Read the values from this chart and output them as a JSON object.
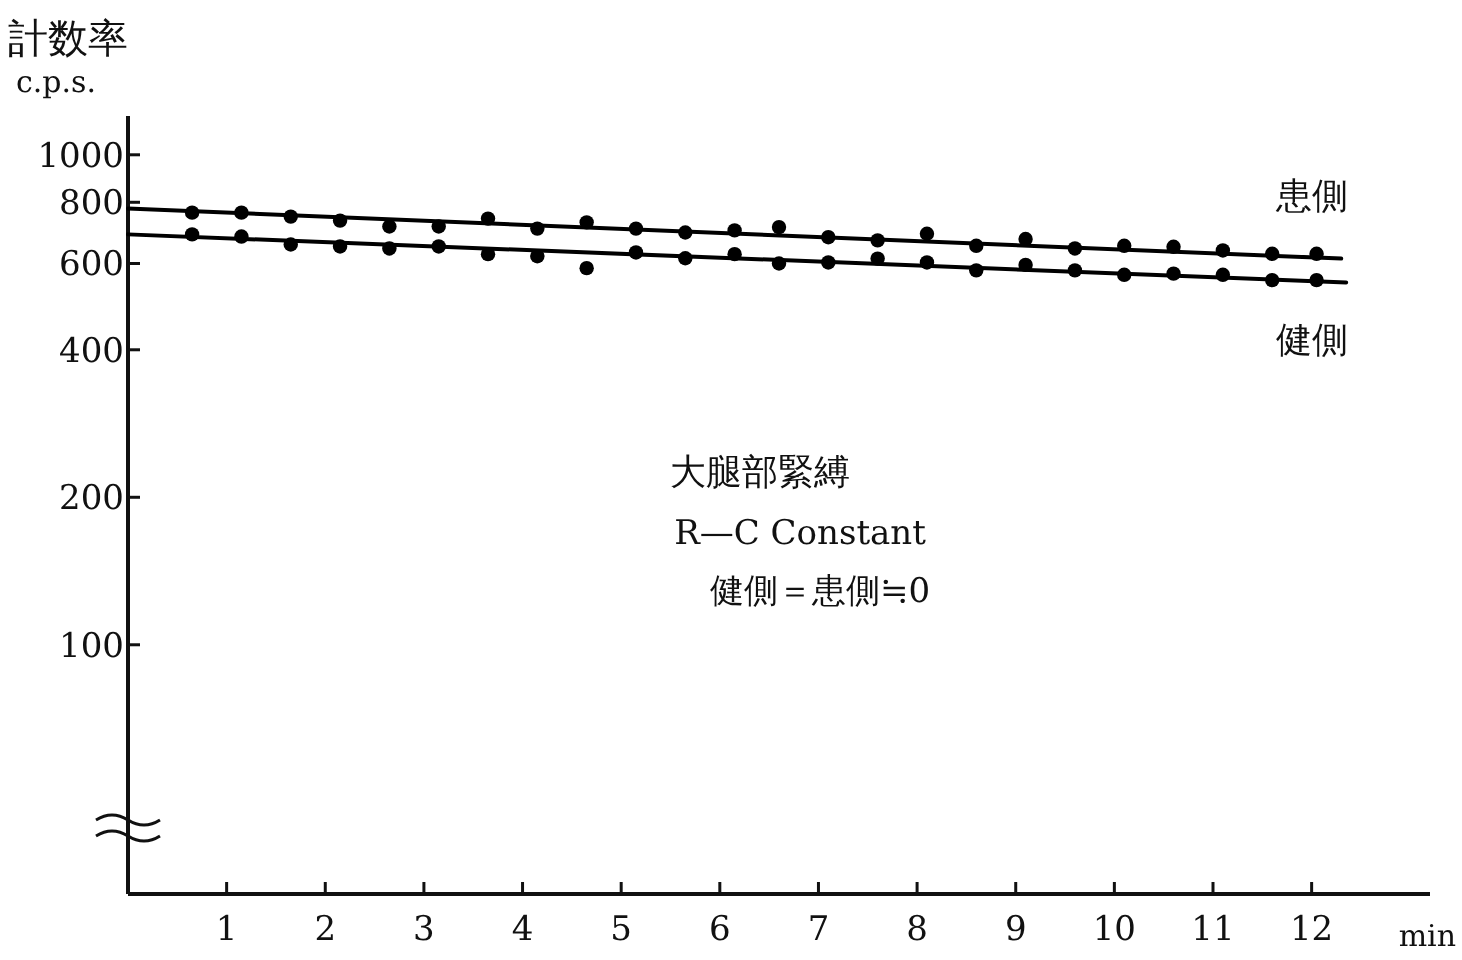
{
  "chart_data": {
    "type": "scatter",
    "ylabel": "計数率",
    "xlabel": "min",
    "log": "y",
    "grid": false,
    "xlim": [
      0,
      13.2
    ],
    "xticks": [
      1,
      2,
      3,
      4,
      5,
      6,
      7,
      8,
      9,
      10,
      11,
      12
    ],
    "ylim": [
      31,
      1200
    ],
    "yticks": [
      100,
      200,
      400,
      600,
      800,
      1000
    ],
    "annotations": [
      "c.p.s.",
      "大腿部緊縛",
      "R—C Constant",
      "健側＝患側≒0"
    ],
    "series": [
      {
        "name": "患側",
        "marker": "circle",
        "color": "#000000",
        "x": [
          0.65,
          1.15,
          1.65,
          2.15,
          2.65,
          3.15,
          3.65,
          4.15,
          4.65,
          5.15,
          5.65,
          6.15,
          6.6,
          7.1,
          7.6,
          8.1,
          8.6,
          9.1,
          9.6,
          10.1,
          10.6,
          11.1,
          11.6,
          12.05
        ],
        "values": [
          762,
          762,
          748,
          734,
          714,
          714,
          741,
          707,
          728,
          707,
          694,
          701,
          712,
          679,
          669,
          690,
          652,
          673,
          644,
          652,
          649,
          638,
          628,
          628
        ]
      },
      {
        "name": "健側",
        "marker": "circle",
        "color": "#000000",
        "x": [
          0.65,
          1.15,
          1.65,
          2.15,
          2.65,
          3.15,
          3.65,
          4.15,
          4.65,
          5.15,
          5.65,
          6.15,
          6.6,
          7.1,
          7.6,
          8.1,
          8.6,
          9.1,
          9.6,
          10.1,
          10.6,
          11.1,
          11.6,
          12.05
        ],
        "values": [
          688,
          681,
          656,
          650,
          644,
          650,
          627,
          621,
          587,
          632,
          615,
          627,
          600,
          603,
          614,
          603,
          581,
          596,
          581,
          569,
          572,
          569,
          555,
          555
        ]
      },
      {
        "type": "line",
        "color": "#000000",
        "line_style": "solid",
        "x": [
          0,
          12.3
        ],
        "values": [
          777,
          614
        ]
      },
      {
        "type": "line",
        "color": "#000000",
        "line_style": "solid",
        "x": [
          0,
          12.35
        ],
        "values": [
          688,
          549
        ]
      }
    ]
  }
}
